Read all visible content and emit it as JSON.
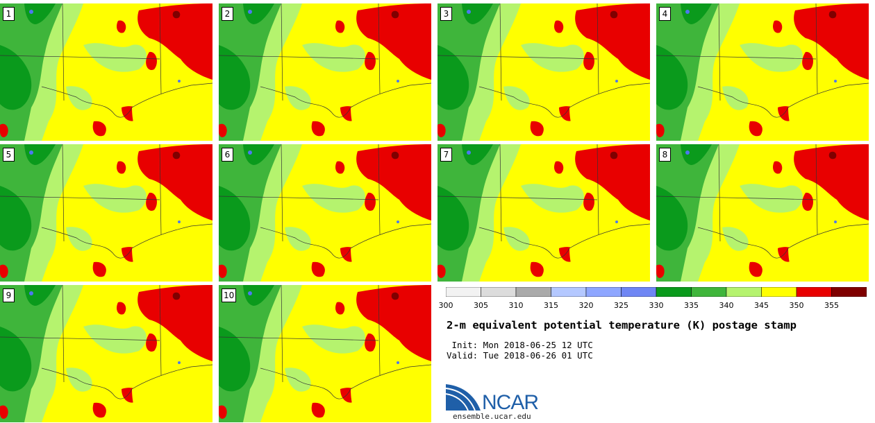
{
  "panels": [
    {
      "label": "1"
    },
    {
      "label": "2"
    },
    {
      "label": "3"
    },
    {
      "label": "4"
    },
    {
      "label": "5"
    },
    {
      "label": "6"
    },
    {
      "label": "7"
    },
    {
      "label": "8"
    },
    {
      "label": "9"
    },
    {
      "label": "10"
    }
  ],
  "map_colors": {
    "band_330_335": "#0a9a1c",
    "band_335_340": "#3fb53b",
    "band_340_345": "#b5f36e",
    "band_345_350": "#ffff00",
    "band_350_355": "#e80000",
    "band_355_plus": "#7f0000",
    "water_blue": "#4e77f0",
    "borders": "#333333"
  },
  "colorbar": {
    "bins": [
      {
        "from": 300,
        "to": 305,
        "color": "#f2f2f2"
      },
      {
        "from": 305,
        "to": 310,
        "color": "#dcdcdc"
      },
      {
        "from": 310,
        "to": 315,
        "color": "#aaaaaa"
      },
      {
        "from": 315,
        "to": 320,
        "color": "#b4c8ff"
      },
      {
        "from": 320,
        "to": 325,
        "color": "#8ea6ff"
      },
      {
        "from": 325,
        "to": 330,
        "color": "#6f86f4"
      },
      {
        "from": 330,
        "to": 335,
        "color": "#0a9a1c"
      },
      {
        "from": 335,
        "to": 340,
        "color": "#3fb53b"
      },
      {
        "from": 340,
        "to": 345,
        "color": "#b5f36e"
      },
      {
        "from": 345,
        "to": 350,
        "color": "#ffff00"
      },
      {
        "from": 350,
        "to": 355,
        "color": "#e80000"
      },
      {
        "from": 355,
        "to": 360,
        "color": "#7f0000"
      }
    ],
    "tick_labels": [
      "300",
      "305",
      "310",
      "315",
      "320",
      "325",
      "330",
      "335",
      "340",
      "345",
      "350",
      "355"
    ]
  },
  "title": "2-m equivalent potential temperature (K) postage stamp",
  "init_line": " Init: Mon 2018-06-25 12 UTC",
  "valid_line": "Valid: Tue 2018-06-26 01 UTC",
  "logo_text": "NCAR",
  "site": "ensemble.ucar.edu"
}
